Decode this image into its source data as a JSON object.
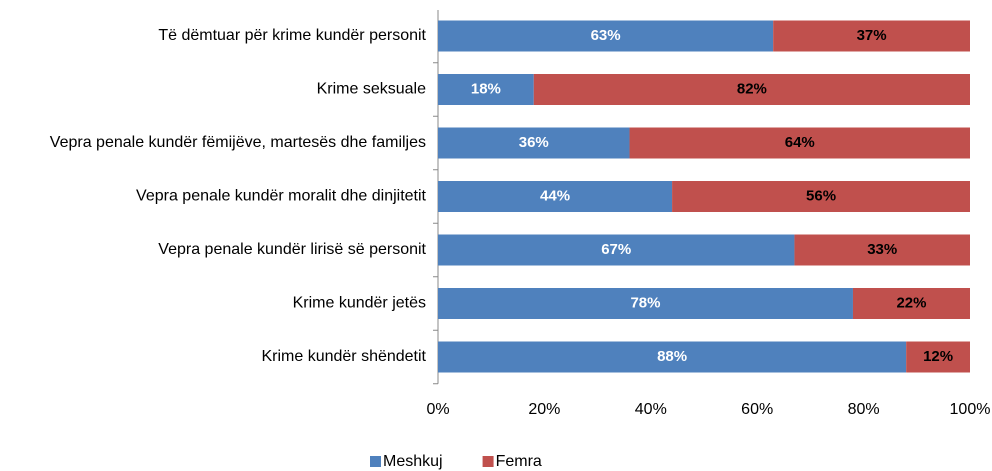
{
  "chart_data": {
    "type": "bar",
    "orientation": "horizontal",
    "stacked": true,
    "categories": [
      "Të dëmtuar për krime kundër personit",
      "Krime seksuale",
      "Vepra penale kundër fëmijëve, martesës dhe familjes",
      "Vepra penale kundër moralit dhe dinjitetit",
      "Vepra penale kundër lirisë së personit",
      "Krime kundër jetës",
      "Krime kundër shëndetit"
    ],
    "series": [
      {
        "name": "Meshkuj",
        "color": "#4f81bd",
        "label_color": "#ffffff",
        "values": [
          63,
          18,
          36,
          44,
          67,
          78,
          88
        ],
        "value_labels": [
          "63%",
          "18%",
          "36%",
          "44%",
          "67%",
          "78%",
          "88%"
        ]
      },
      {
        "name": "Femra",
        "color": "#c0504d",
        "label_color": "#000000",
        "values": [
          37,
          82,
          64,
          56,
          33,
          22,
          12
        ],
        "value_labels": [
          "37%",
          "82%",
          "64%",
          "56%",
          "33%",
          "22%",
          "12%"
        ]
      }
    ],
    "xlim": [
      0,
      100
    ],
    "xticks": [
      {
        "value": 0,
        "label": "0%"
      },
      {
        "value": 20,
        "label": "20%"
      },
      {
        "value": 40,
        "label": "40%"
      },
      {
        "value": 60,
        "label": "60%"
      },
      {
        "value": 80,
        "label": "80%"
      },
      {
        "value": 100,
        "label": "100%"
      }
    ],
    "legend": "bottom"
  }
}
